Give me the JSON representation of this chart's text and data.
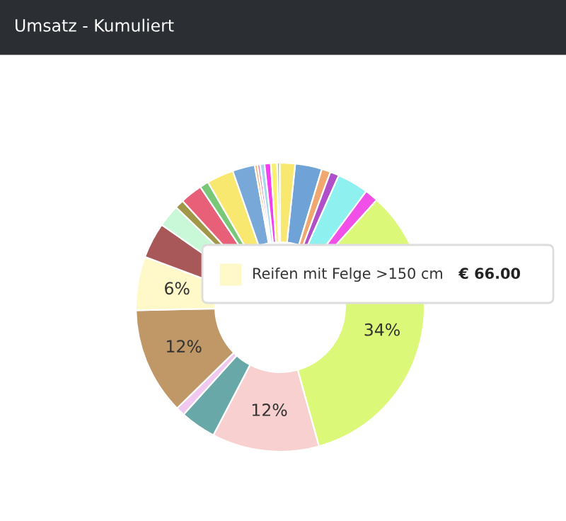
{
  "chart_data": {
    "type": "donut",
    "title": "Umsatz - Kumuliert",
    "categories": [
      null,
      null,
      null,
      null,
      null,
      null,
      null,
      null,
      null,
      null,
      null,
      null,
      null,
      null,
      null,
      null,
      null,
      null,
      null,
      null,
      null,
      null,
      null,
      null,
      null
    ],
    "values": [
      3,
      1,
      1,
      3.5,
      1.5,
      34,
      12,
      4,
      1,
      12,
      6,
      4,
      2.5,
      1,
      2.5,
      1,
      3,
      2.5,
      0.3,
      0.3,
      0.5,
      0.7,
      0.7,
      0.3,
      1.7
    ],
    "colors": [
      "#6fa3d8",
      "#f0a870",
      "#b050c8",
      "#8ff0f0",
      "#f050e8",
      "#dcf878",
      "#f8d0d0",
      "#68a8a8",
      "#f0c8f0",
      "#c09868",
      "#fff8c8",
      "#a85858",
      "#c8f8d8",
      "#a09848",
      "#e86078",
      "#78c878",
      "#f8e870",
      "#78a8d8",
      "#f0a870",
      "#f080a0",
      "#a8d8f0",
      "#f040f0",
      "#f8f070",
      "#78d878",
      "#f8e870"
    ],
    "value_labels": [
      null,
      null,
      null,
      null,
      null,
      "34%",
      "12%",
      null,
      null,
      "12%",
      "6%",
      null,
      null,
      null,
      null,
      null,
      null,
      null,
      null,
      null,
      null,
      null,
      null,
      null,
      null
    ],
    "annotations": [
      "Reifen mit Felge >150 cm",
      "€ 66.00"
    ]
  }
}
